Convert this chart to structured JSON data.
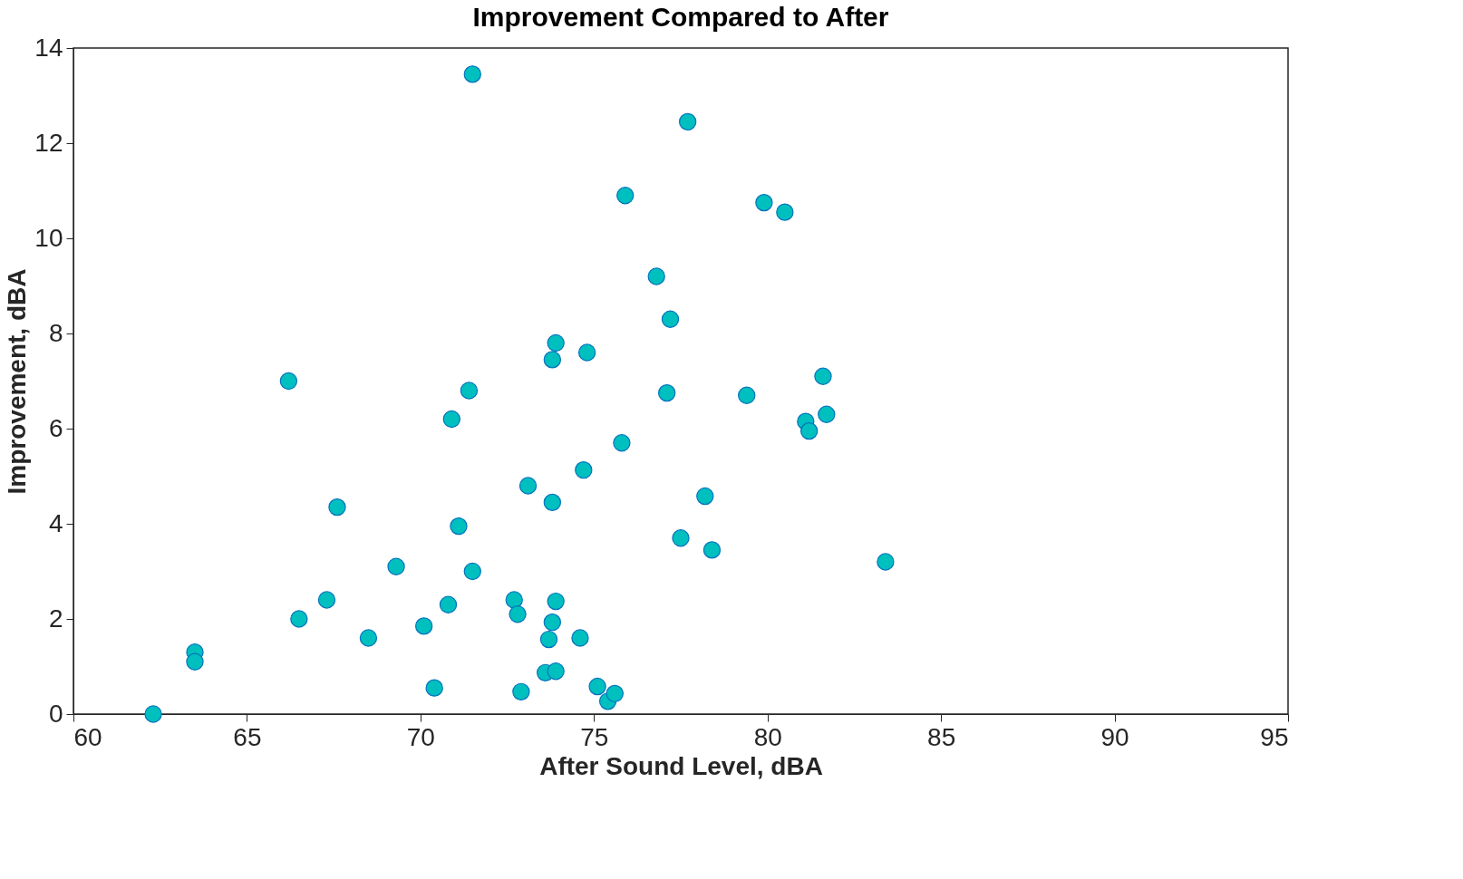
{
  "chart_data": {
    "type": "scatter",
    "title": "Improvement Compared to After",
    "xlabel": "After Sound Level, dBA",
    "ylabel": "Improvement, dBA",
    "x": [
      62.3,
      63.5,
      63.5,
      66.2,
      66.5,
      67.3,
      67.6,
      68.5,
      69.3,
      70.1,
      70.4,
      70.8,
      70.9,
      71.1,
      71.4,
      71.5,
      71.5,
      72.7,
      72.8,
      72.9,
      73.1,
      73.6,
      73.7,
      73.8,
      73.8,
      73.8,
      73.9,
      73.9,
      73.9,
      74.6,
      74.7,
      74.8,
      75.1,
      75.4,
      75.6,
      75.8,
      75.9,
      76.8,
      77.1,
      77.2,
      77.5,
      77.7,
      78.2,
      78.4,
      79.4,
      79.9,
      80.5,
      81.1,
      81.2,
      81.6,
      81.7,
      83.4
    ],
    "series": [
      {
        "color": "#00bfbf",
        "values": [
          0.0,
          1.3,
          1.1,
          7.0,
          2.0,
          2.4,
          4.35,
          1.6,
          3.1,
          1.85,
          0.55,
          2.3,
          6.2,
          3.95,
          6.8,
          13.45,
          3.0,
          2.4,
          2.1,
          0.47,
          4.8,
          0.87,
          1.57,
          7.45,
          4.45,
          1.93,
          0.9,
          7.8,
          2.37,
          1.6,
          5.13,
          7.6,
          0.58,
          0.27,
          0.43,
          5.7,
          10.9,
          9.2,
          6.75,
          8.3,
          3.7,
          12.45,
          4.58,
          3.45,
          6.7,
          10.75,
          10.55,
          6.15,
          5.95,
          7.1,
          6.3,
          3.2
        ]
      }
    ],
    "xlim": [
      60,
      95
    ],
    "xticks": [
      60,
      65,
      70,
      75,
      80,
      85,
      90,
      95
    ],
    "ylim": [
      0,
      14
    ],
    "yticks": [
      0,
      2,
      4,
      6,
      8,
      10,
      12,
      14
    ],
    "grid": false,
    "marker": "circle"
  }
}
